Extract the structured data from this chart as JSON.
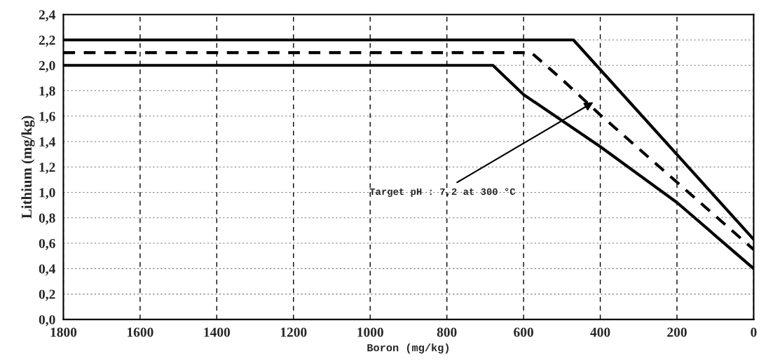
{
  "chart_data": {
    "type": "line",
    "xlabel": "Boron (mg/kg)",
    "ylabel": "Lithium (mg/kg)",
    "series": [
      {
        "color": "#000000",
        "line_style": "solid",
        "x": [
          1800,
          470,
          0
        ],
        "values": [
          2.2,
          2.2,
          0.63
        ]
      },
      {
        "color": "#000000",
        "line_style": "dashed",
        "x": [
          1800,
          580,
          500,
          400,
          200,
          0
        ],
        "values": [
          2.1,
          2.1,
          1.89,
          1.61,
          1.08,
          0.55
        ]
      },
      {
        "color": "#000000",
        "line_style": "solid",
        "x": [
          1800,
          680,
          600,
          400,
          200,
          0
        ],
        "values": [
          2.0,
          2.0,
          1.77,
          1.36,
          0.92,
          0.4
        ]
      }
    ],
    "xlim": [
      1800,
      0
    ],
    "xticks": [
      1800,
      1600,
      1400,
      1200,
      1000,
      800,
      600,
      400,
      200,
      0
    ],
    "ylim": [
      0,
      2.4
    ],
    "yticks": [
      {
        "value": 0,
        "label": "0,0"
      },
      {
        "value": 0.2,
        "label": "0,2"
      },
      {
        "value": 0.4,
        "label": "0,4"
      },
      {
        "value": 0.6,
        "label": "0,6"
      },
      {
        "value": 0.8,
        "label": "0,8"
      },
      {
        "value": 1.0,
        "label": "1,0"
      },
      {
        "value": 1.2,
        "label": "1,2"
      },
      {
        "value": 1.4,
        "label": "1,4"
      },
      {
        "value": 1.6,
        "label": "1,6"
      },
      {
        "value": 1.8,
        "label": "1,8"
      },
      {
        "value": 2.0,
        "label": "2,0"
      },
      {
        "value": 2.2,
        "label": "2,2"
      },
      {
        "value": 2.4,
        "label": "2,4"
      }
    ],
    "grid": true,
    "marker": "none",
    "legend": false,
    "annotations": [
      {
        "text": "Target pH : 7,2 at 300 °C",
        "x": 418,
        "y": 1.71
      }
    ]
  }
}
